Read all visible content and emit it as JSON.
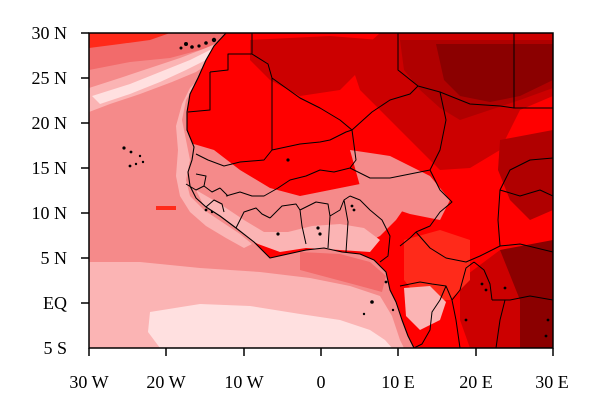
{
  "map": {
    "colors": {
      "lightest": "#ffe0e0",
      "light": "#fbb4b4",
      "medium_light": "#f58a8a",
      "medium": "#f26b6b",
      "red": "#ff2a1a",
      "bright_red": "#ff0000",
      "dark_red": "#cc0000",
      "darker_red": "#b00000",
      "darkest_red": "#8b0000",
      "outline": "#000000"
    },
    "x_axis": {
      "ticks": [
        "30 W",
        "20 W",
        "10 W",
        "0",
        "10 E",
        "20 E",
        "30 E"
      ]
    },
    "y_axis": {
      "ticks": [
        "30 N",
        "25 N",
        "20 N",
        "15 N",
        "10 N",
        "5 N",
        "EQ",
        "5 S"
      ]
    }
  }
}
